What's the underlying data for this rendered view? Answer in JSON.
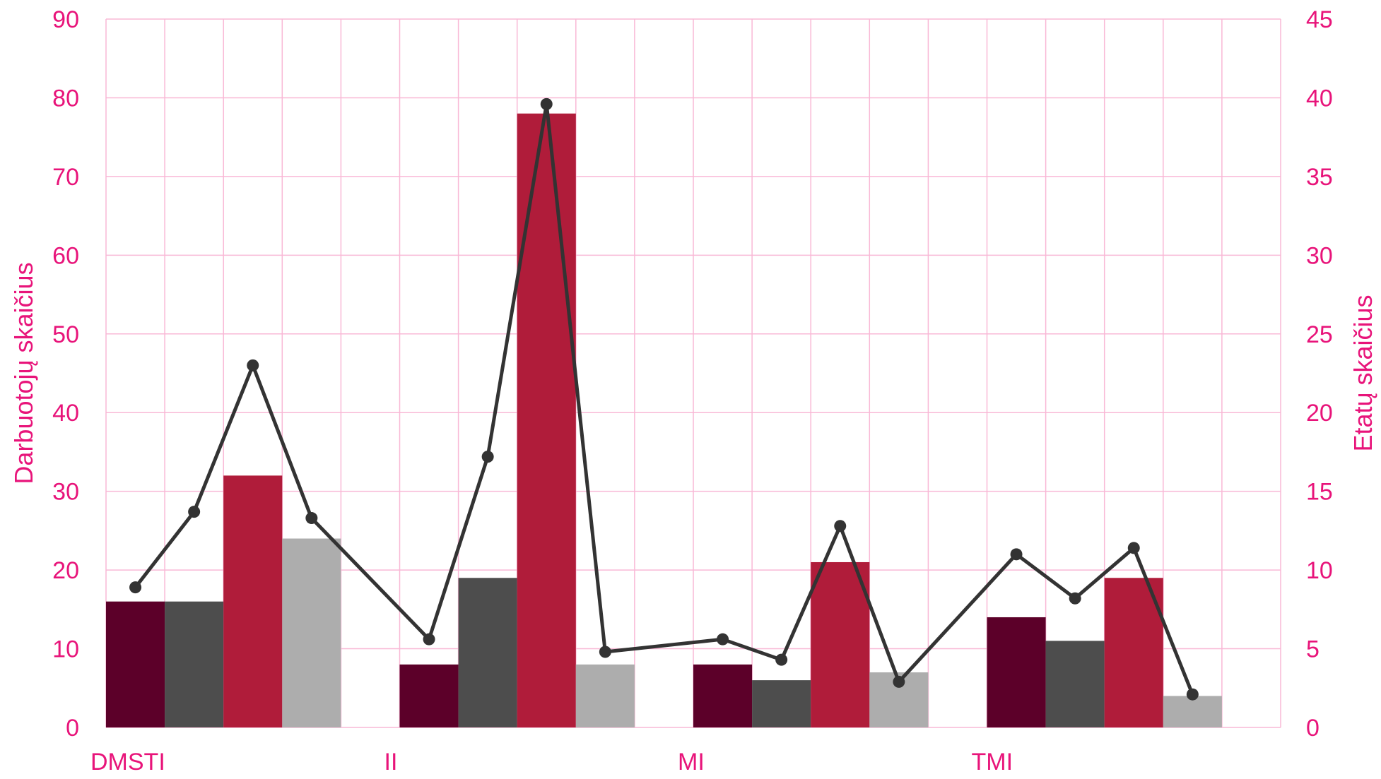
{
  "chart_data": {
    "type": "bar",
    "title": "",
    "ylabel": "Darbuotojų skaičius",
    "y2label": "Etatų skaičius",
    "ylim": [
      0,
      90
    ],
    "y2lim": [
      0,
      45
    ],
    "yticks": [
      "0",
      "10",
      "20",
      "30",
      "40",
      "50",
      "60",
      "70",
      "80",
      "90"
    ],
    "y2ticks": [
      "0",
      "5",
      "10",
      "15",
      "20",
      "25",
      "30",
      "35",
      "40",
      "45"
    ],
    "grid": true,
    "legend": "none",
    "groups": [
      "DMSTI",
      "II",
      "MI",
      "TMI"
    ],
    "bars_per_group": 4,
    "bar_colors": [
      "#5c0029",
      "#4d4d4d",
      "#b01c3a",
      "#adadad"
    ],
    "bars": [
      [
        16,
        16,
        32,
        24
      ],
      [
        8,
        19,
        78,
        8
      ],
      [
        8,
        6,
        21,
        7
      ],
      [
        14,
        11,
        19,
        4
      ]
    ],
    "line": {
      "axis": "right",
      "color": "#333333",
      "values": [
        [
          8.9,
          13.7,
          23.0,
          13.3
        ],
        [
          5.6,
          17.2,
          39.6,
          4.8
        ],
        [
          5.6,
          4.3,
          12.8,
          2.9
        ],
        [
          11.0,
          8.2,
          11.4,
          2.1
        ]
      ]
    },
    "colors": {
      "axis_text": "#e8147a",
      "grid": "#f9b8d6"
    }
  }
}
